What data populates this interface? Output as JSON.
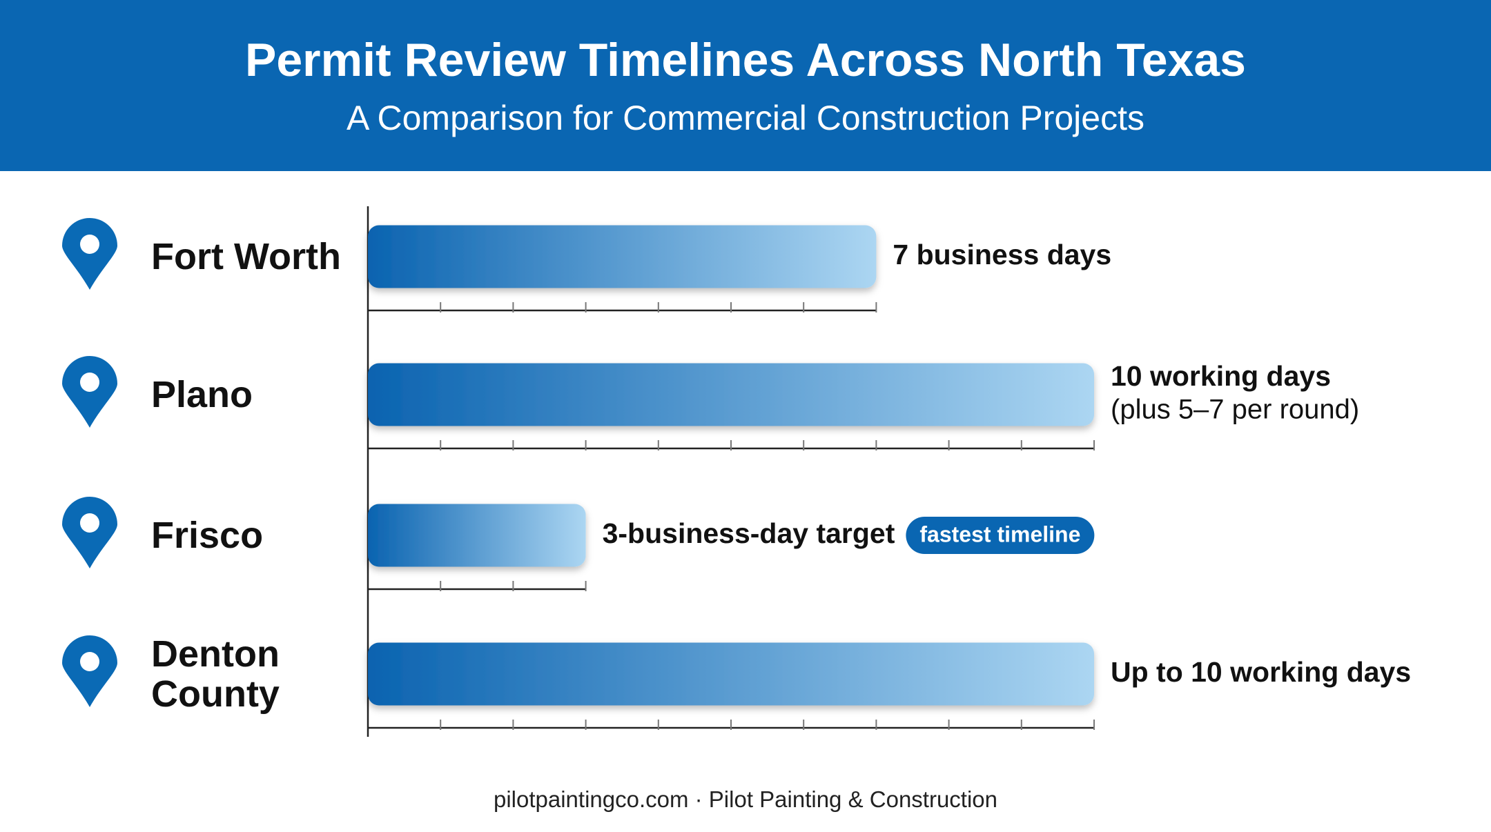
{
  "chart_data": {
    "type": "bar",
    "orientation": "horizontal",
    "title": "Permit Review Timelines Across North Texas",
    "subtitle": "A Comparison for Commercial Construction Projects",
    "categories": [
      "Fort Worth",
      "Plano",
      "Frisco",
      "Denton County"
    ],
    "values": [
      7,
      10,
      3,
      10
    ],
    "value_labels": [
      "7 business days",
      "10 working days",
      "3-business-day target",
      "Up to 10 working days"
    ],
    "annotations": [
      "(plus 5–7 per round)",
      "fastest timeline"
    ],
    "xlim": [
      0,
      10
    ],
    "xticks": [
      0,
      1,
      2,
      3,
      4,
      5,
      6,
      7,
      8,
      9,
      10
    ],
    "color": "#0a63b0",
    "color_end": "#acd6f2",
    "footer": "pilotpaintingco.com · Pilot Painting & Construction"
  }
}
